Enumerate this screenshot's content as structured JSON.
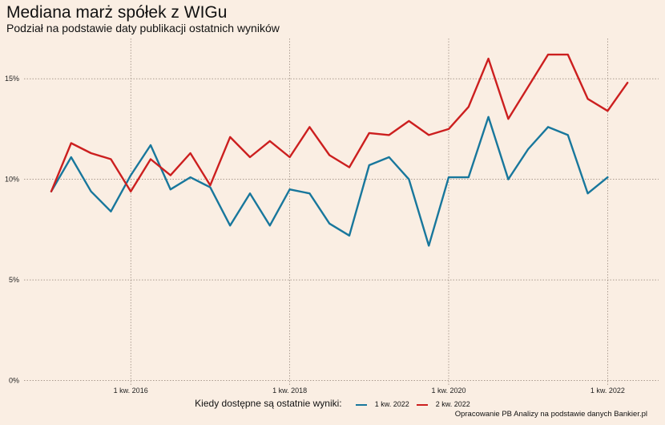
{
  "chart_data": {
    "type": "line",
    "title": "Mediana marż spółek z WIGu",
    "subtitle": "Podział na podstawie daty publikacji ostatnich wyników",
    "xlabel": "",
    "ylabel": "",
    "x_tick_labels": [
      "1 kw. 2016",
      "1 kw. 2018",
      "1 kw. 2020",
      "1 kw. 2022"
    ],
    "y_tick_labels": [
      "0%",
      "5%",
      "10%",
      "15%"
    ],
    "y_ticks": [
      0,
      5,
      10,
      15
    ],
    "ylim": [
      -0.3,
      17
    ],
    "x": [
      "1 kw. 2015",
      "2 kw. 2015",
      "3 kw. 2015",
      "4 kw. 2015",
      "1 kw. 2016",
      "2 kw. 2016",
      "3 kw. 2016",
      "4 kw. 2016",
      "1 kw. 2017",
      "2 kw. 2017",
      "3 kw. 2017",
      "4 kw. 2017",
      "1 kw. 2018",
      "2 kw. 2018",
      "3 kw. 2018",
      "4 kw. 2018",
      "1 kw. 2019",
      "2 kw. 2019",
      "3 kw. 2019",
      "4 kw. 2019",
      "1 kw. 2020",
      "2 kw. 2020",
      "3 kw. 2020",
      "4 kw. 2020",
      "1 kw. 2021",
      "2 kw. 2021",
      "3 kw. 2021",
      "4 kw. 2021",
      "1 kw. 2022",
      "2 kw. 2022"
    ],
    "grid": true,
    "legend_position": "bottom",
    "legend_title": "Kiedy dostępne są ostatnie wyniki:",
    "series": [
      {
        "name": "1 kw. 2022",
        "color": "#18779c",
        "values": [
          9.4,
          11.1,
          9.4,
          8.4,
          10.2,
          11.7,
          9.5,
          10.1,
          9.6,
          7.7,
          9.3,
          7.7,
          9.5,
          9.3,
          7.8,
          7.2,
          10.7,
          11.1,
          10.0,
          6.7,
          10.1,
          10.1,
          13.1,
          10.0,
          11.5,
          12.6,
          12.2,
          9.3,
          10.1,
          null
        ]
      },
      {
        "name": "2 kw. 2022",
        "color": "#cc1f1f",
        "values": [
          9.4,
          11.8,
          11.3,
          11.0,
          9.4,
          11.0,
          10.2,
          11.3,
          9.7,
          12.1,
          11.1,
          11.9,
          11.1,
          12.6,
          11.2,
          10.6,
          12.3,
          12.2,
          12.9,
          12.2,
          12.5,
          13.6,
          16.0,
          13.0,
          14.6,
          16.2,
          16.2,
          14.0,
          13.4,
          14.8
        ]
      }
    ]
  },
  "caption": "Opracowanie PB Analizy na podstawie danych Bankier.pl"
}
